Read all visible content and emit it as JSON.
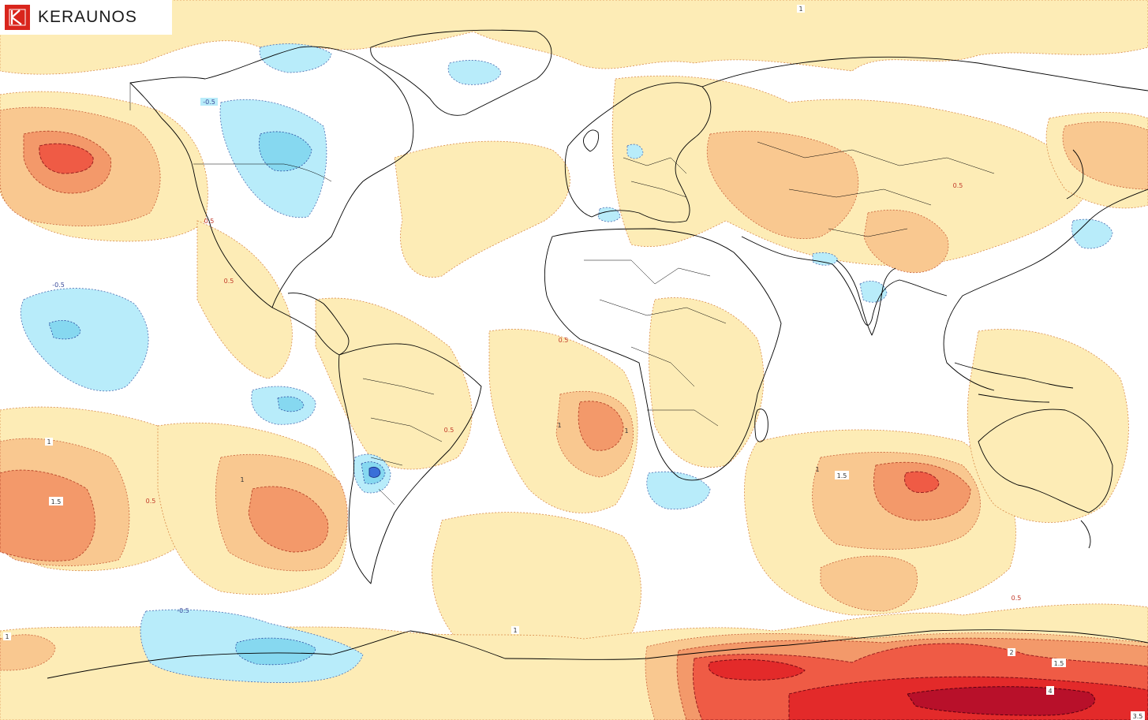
{
  "brand": {
    "name": "KERAUNOS",
    "icon": "keraunos-k-logo"
  },
  "palette": {
    "ocean": "#ffffff",
    "anom_neg_05": "#b8ecfa",
    "anom_neg_10": "#86d8f0",
    "anom_neg_15": "#3a6fd8",
    "anom_pos_05": "#fdecb6",
    "anom_pos_10": "#f9c890",
    "anom_pos_15": "#f3996a",
    "anom_pos_20": "#ef5b45",
    "anom_pos_30": "#e32a2a",
    "anom_pos_40": "#b8102a",
    "coast": "#000000"
  },
  "contour_labels": [
    {
      "id": "top-1",
      "text": "1"
    },
    {
      "id": "canada-neg",
      "text": "-0.5"
    },
    {
      "id": "bc-pos",
      "text": "0.5"
    },
    {
      "id": "mexico-pos",
      "text": "0.5"
    },
    {
      "id": "pac-neg",
      "text": "-0.5"
    },
    {
      "id": "wafrica-pos",
      "text": "0.5"
    },
    {
      "id": "safrica-1a",
      "text": "1"
    },
    {
      "id": "safrica-1b",
      "text": "1"
    },
    {
      "id": "brazil-pos",
      "text": "0.5"
    },
    {
      "id": "spac-1",
      "text": "1"
    },
    {
      "id": "spac-15",
      "text": "1.5"
    },
    {
      "id": "spac-1b",
      "text": "1"
    },
    {
      "id": "spac-05",
      "text": "0.5"
    },
    {
      "id": "china-05",
      "text": "0.5"
    },
    {
      "id": "ind-1",
      "text": "1"
    },
    {
      "id": "ind-15",
      "text": "1.5"
    },
    {
      "id": "aus-05",
      "text": "0.5"
    },
    {
      "id": "ant-neg",
      "text": "-0.5"
    },
    {
      "id": "satl-1",
      "text": "1"
    },
    {
      "id": "left-1",
      "text": "1"
    },
    {
      "id": "ant-2",
      "text": "2"
    },
    {
      "id": "ant-15",
      "text": "1.5"
    },
    {
      "id": "ant-4",
      "text": "4"
    },
    {
      "id": "ant-35",
      "text": "3.5"
    }
  ]
}
